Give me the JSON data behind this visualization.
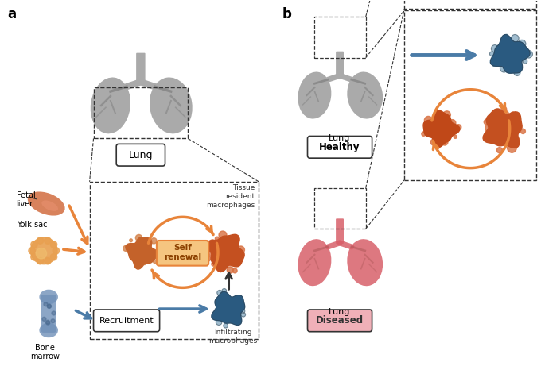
{
  "background_color": "#ffffff",
  "panel_a_label": "a",
  "panel_b_label": "b",
  "lung_label": "Lung",
  "healthy_label_bold": "Healthy",
  "healthy_label": "Lung",
  "diseased_label_bold": "Diseased",
  "diseased_label": "Lung",
  "self_renewal_label": "Self\nrenewal",
  "recruitment_label": "Recruitment",
  "tissue_resident_label": "Tissue\nresident\nmacrophages",
  "infiltrating_label": "Infiltrating\nmacrophages",
  "fetal_liver_label": "Fetal\nliver",
  "yolk_sac_label": "Yolk sac",
  "bone_marrow_label": "Bone\nmarrow",
  "orange_color": "#E8843A",
  "orange_light": "#F0A56A",
  "orange_dark": "#C4622A",
  "blue_color": "#4A7BA7",
  "blue_light": "#8AADC4",
  "blue_dark": "#2A5A80",
  "gray_color": "#999999",
  "gray_light": "#BBBBBB",
  "gray_dark": "#666666",
  "lung_healthy_color": "#AAAAAA",
  "lung_diseased_color": "#D8606A"
}
